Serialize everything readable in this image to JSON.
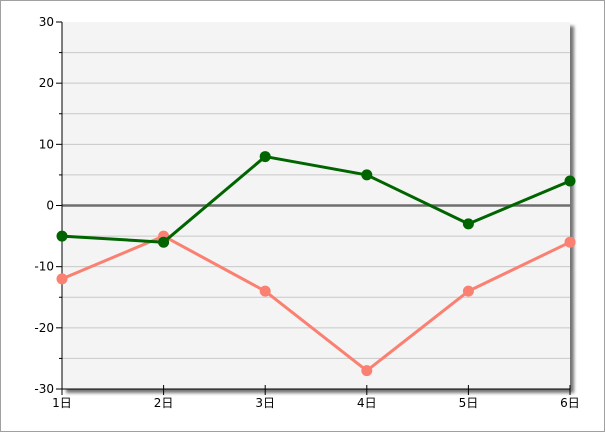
{
  "chart_data": {
    "type": "line",
    "title": "",
    "xlabel": "",
    "ylabel": "",
    "categories": [
      "1日",
      "2日",
      "3日",
      "4日",
      "5日",
      "6日"
    ],
    "ylim": [
      -30,
      30
    ],
    "yticks": [
      30,
      20,
      10,
      0,
      -10,
      -20,
      -30
    ],
    "ytick_labels": [
      "30",
      "20",
      "10",
      "0",
      "-10",
      "-20",
      "-30"
    ],
    "grid": true,
    "legend": "none",
    "series": [
      {
        "color": "#006400",
        "values": [
          -5,
          -6,
          8,
          5,
          -3,
          4
        ]
      },
      {
        "color": "#fa8072",
        "values": [
          -12,
          -5,
          -14,
          -27,
          -14,
          -6
        ]
      }
    ],
    "zero_line_color": "#6e6e6e",
    "plot_background": "#f4f4f4",
    "grid_color": "#c8c8c8"
  }
}
